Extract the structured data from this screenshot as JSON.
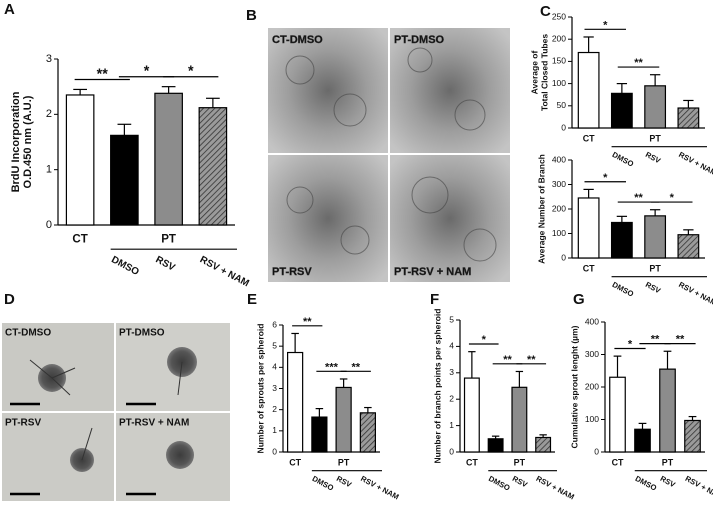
{
  "chart_data": [
    {
      "type": "bar",
      "panel_label": "A",
      "y_label": [
        "BrdU Incorporation",
        "O.D.450 nm (A.U.)"
      ],
      "categories": [
        "CT",
        "DMSO",
        "RSV",
        "RSV + NAM"
      ],
      "group_label": "PT",
      "values": [
        2.35,
        1.62,
        2.38,
        2.12
      ],
      "errors": [
        0.1,
        0.2,
        0.12,
        0.17
      ],
      "colors": [
        "#ffffff",
        "#000000",
        "#8c8c8c",
        "#707070"
      ],
      "hatched": [
        false,
        false,
        false,
        true
      ],
      "ylim": [
        0,
        3
      ],
      "yticks": [
        0,
        1,
        2,
        3
      ],
      "significance": [
        "**",
        "*",
        "*"
      ]
    },
    {
      "type": "bar",
      "panel_label": "C",
      "y_label": [
        "Average of",
        "Total Closed Tubes"
      ],
      "categories": [
        "CT",
        "DMSO",
        "RSV",
        "RSV + NAM"
      ],
      "group_label": "PT",
      "values": [
        170,
        78,
        95,
        45
      ],
      "errors": [
        35,
        22,
        25,
        17
      ],
      "colors": [
        "#ffffff",
        "#000000",
        "#8c8c8c",
        "#707070"
      ],
      "hatched": [
        false,
        false,
        false,
        true
      ],
      "ylim": [
        0,
        250
      ],
      "yticks": [
        0,
        50,
        100,
        150,
        200,
        250
      ],
      "significance": [
        "*",
        "**",
        null
      ]
    },
    {
      "type": "bar",
      "y_label": [
        "Average Number of Branch"
      ],
      "categories": [
        "CT",
        "DMSO",
        "RSV",
        "RSV + NAM"
      ],
      "group_label": "PT",
      "values": [
        245,
        145,
        172,
        95
      ],
      "errors": [
        35,
        25,
        25,
        20
      ],
      "colors": [
        "#ffffff",
        "#000000",
        "#8c8c8c",
        "#707070"
      ],
      "hatched": [
        false,
        false,
        false,
        true
      ],
      "ylim": [
        0,
        400
      ],
      "yticks": [
        0,
        100,
        200,
        300,
        400
      ],
      "significance": [
        "*",
        "**",
        "*"
      ]
    },
    {
      "type": "bar",
      "panel_label": "E",
      "y_label": [
        "Number of sprouts per spheroid"
      ],
      "categories": [
        "CT",
        "DMSO",
        "RSV",
        "RSV + NAM"
      ],
      "group_label": "PT",
      "values": [
        4.7,
        1.65,
        3.05,
        1.85
      ],
      "errors": [
        0.9,
        0.4,
        0.4,
        0.25
      ],
      "colors": [
        "#ffffff",
        "#000000",
        "#8c8c8c",
        "#707070"
      ],
      "hatched": [
        false,
        false,
        false,
        true
      ],
      "ylim": [
        0,
        6
      ],
      "yticks": [
        0,
        1,
        2,
        3,
        4,
        5,
        6
      ],
      "significance": [
        "**",
        "***",
        "**"
      ]
    },
    {
      "type": "bar",
      "panel_label": "F",
      "y_label": [
        "Number of branch points per spheroid"
      ],
      "categories": [
        "CT",
        "DMSO",
        "RSV",
        "RSV + NAM"
      ],
      "group_label": "PT",
      "values": [
        2.8,
        0.5,
        2.45,
        0.55
      ],
      "errors": [
        1.0,
        0.1,
        0.6,
        0.1
      ],
      "colors": [
        "#ffffff",
        "#000000",
        "#8c8c8c",
        "#707070"
      ],
      "hatched": [
        false,
        false,
        false,
        true
      ],
      "ylim": [
        0,
        5
      ],
      "yticks": [
        0,
        1,
        2,
        3,
        4,
        5
      ],
      "significance": [
        "*",
        "**",
        "**"
      ]
    },
    {
      "type": "bar",
      "panel_label": "G",
      "y_label": [
        "Cumulative sprout lenght (µm)"
      ],
      "categories": [
        "CT",
        "DMSO",
        "RSV",
        "RSV + NAM"
      ],
      "group_label": "PT",
      "values": [
        230,
        70,
        255,
        97
      ],
      "errors": [
        65,
        18,
        55,
        12
      ],
      "colors": [
        "#ffffff",
        "#000000",
        "#8c8c8c",
        "#707070"
      ],
      "hatched": [
        false,
        false,
        false,
        true
      ],
      "ylim": [
        0,
        400
      ],
      "yticks": [
        0,
        100,
        200,
        300,
        400
      ],
      "significance": [
        "*",
        "**",
        "**"
      ]
    }
  ],
  "images": [
    {
      "panel_label": "B",
      "labels": [
        "CT-DMSO",
        "PT-DMSO",
        "PT-RSV",
        "PT-RSV + NAM"
      ]
    },
    {
      "panel_label": "D",
      "labels": [
        "CT-DMSO",
        "PT-DMSO",
        "PT-RSV",
        "PT-RSV + NAM"
      ]
    }
  ]
}
